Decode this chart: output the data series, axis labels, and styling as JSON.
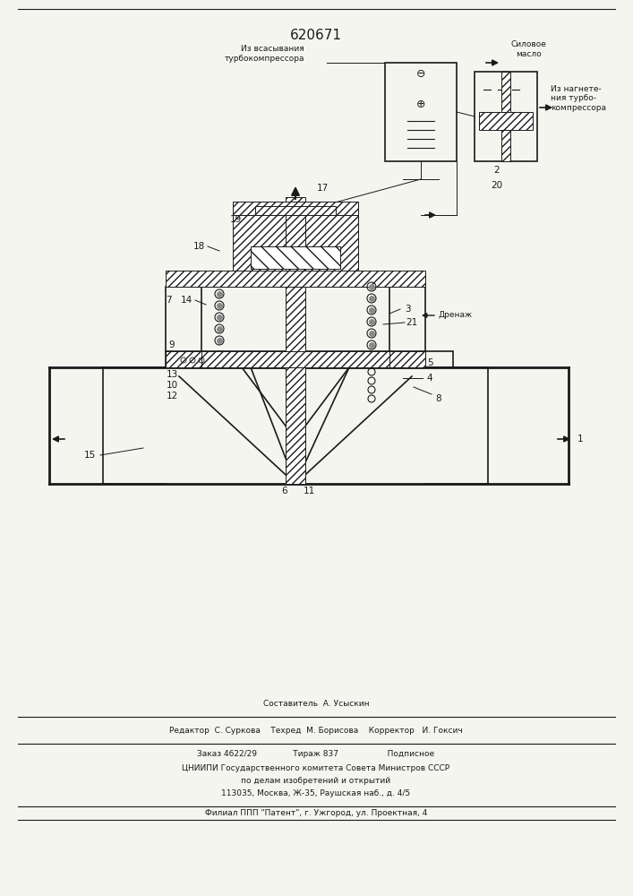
{
  "patent_number": "620671",
  "bg_color": "#f5f5f0",
  "line_color": "#1a1a1a",
  "title_fontsize": 11,
  "label_fontsize": 7.5,
  "small_fontsize": 6.5,
  "footer_lines": [
    "Составитель  А. Усыскин",
    "Редактор  С. Суркова    Техред  М. Борисова    Корректор   И. Гоксич",
    "Заказ 4622/29              Тираж 837                   Подписное",
    "ЦНИИПИ Государственного комитета Совета Министров СССР",
    "по делам изобретений и открытий",
    "113035, Москва, Ж-35, Раушская наб., д. 4/5",
    "Филиал ППП \"Патент\", г. Ужгород, ул. Проектная, 4"
  ]
}
